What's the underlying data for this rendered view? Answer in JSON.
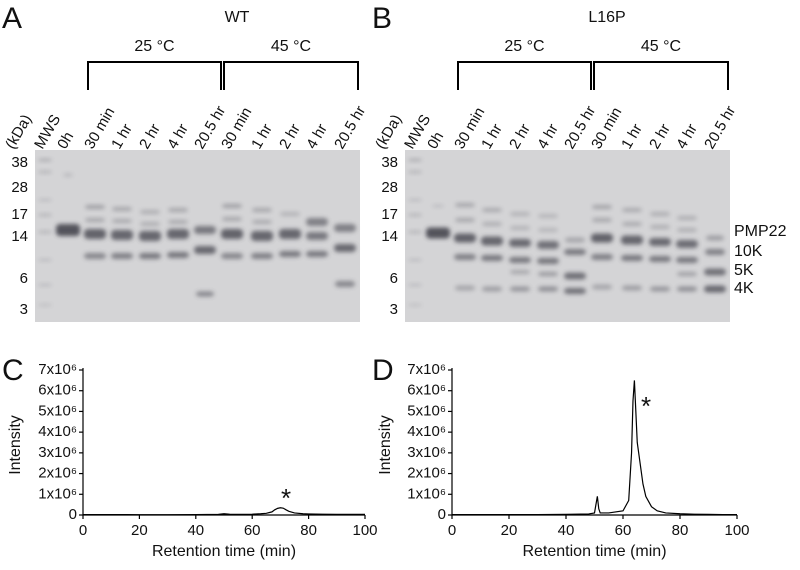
{
  "panels": [
    {
      "letter": "A",
      "title": "WT",
      "groups": [
        "25 °C",
        "45 °C"
      ],
      "unit": "(kDa)",
      "lanes": [
        "MWS",
        "0h",
        "30 min",
        "1 hr",
        "2 hr",
        "4 hr",
        "20.5 hr",
        "30 min",
        "1 hr",
        "2 hr",
        "4 hr",
        "20.5 hr"
      ],
      "markers": [
        "38",
        "28",
        "17",
        "14",
        "6",
        "3"
      ]
    },
    {
      "letter": "B",
      "title": "L16P",
      "groups": [
        "25 °C",
        "45 °C"
      ],
      "unit": "(kDa)",
      "lanes": [
        "MWS",
        "0h",
        "30 min",
        "1 hr",
        "2 hr",
        "4 hr",
        "20.5 hr",
        "30 min",
        "1 hr",
        "2 hr",
        "4 hr",
        "20.5 hr"
      ],
      "markers": [
        "38",
        "28",
        "17",
        "14",
        "6",
        "3"
      ],
      "band_labels": [
        "PMP22",
        "10K",
        "5K",
        "4K"
      ]
    }
  ],
  "chart_data": [
    {
      "letter": "C",
      "type": "line",
      "xlabel": "Retention time (min)",
      "ylabel": "Intensity",
      "annotation": "*",
      "x": [
        0,
        10,
        20,
        30,
        40,
        48,
        50,
        52,
        55,
        60,
        63,
        65,
        67,
        68,
        69,
        70,
        71,
        72,
        73,
        75,
        78,
        80,
        85,
        90,
        95,
        100
      ],
      "series": [
        {
          "color": "#000000",
          "values": [
            20000,
            20000,
            15000,
            15000,
            20000,
            30000,
            60000,
            40000,
            30000,
            40000,
            60000,
            80000,
            150000,
            250000,
            320000,
            350000,
            330000,
            250000,
            180000,
            100000,
            60000,
            50000,
            40000,
            30000,
            30000,
            30000
          ]
        }
      ],
      "xlim": [
        0,
        100
      ],
      "xticks": [
        0,
        20,
        40,
        60,
        80,
        100
      ],
      "ylim": [
        0,
        7000000
      ],
      "yticks": [
        0,
        {
          "value": 1000000,
          "label": "1x10⁶"
        },
        {
          "value": 2000000,
          "label": "2x10⁶"
        },
        {
          "value": 3000000,
          "label": "3x10⁶"
        },
        {
          "value": 4000000,
          "label": "4x10⁶"
        },
        {
          "value": 5000000,
          "label": "5x10⁶"
        },
        {
          "value": 6000000,
          "label": "6x10⁶"
        },
        {
          "value": 7000000,
          "label": "7x10⁶"
        }
      ]
    },
    {
      "letter": "D",
      "type": "line",
      "xlabel": "Retention time (min)",
      "ylabel": "Intensity",
      "annotation": "*",
      "x": [
        0,
        10,
        20,
        30,
        40,
        48,
        50,
        50.5,
        51,
        51.5,
        52,
        55,
        60,
        62,
        63,
        63.5,
        64,
        64.5,
        65,
        66,
        67,
        68,
        70,
        72,
        75,
        80,
        85,
        90,
        95,
        100
      ],
      "series": [
        {
          "color": "#000000",
          "values": [
            20000,
            20000,
            20000,
            20000,
            30000,
            50000,
            100000,
            500000,
            900000,
            300000,
            100000,
            100000,
            200000,
            700000,
            3000000,
            5500000,
            6500000,
            5000000,
            3500000,
            2500000,
            1500000,
            900000,
            400000,
            200000,
            100000,
            60000,
            40000,
            30000,
            20000,
            20000
          ]
        }
      ],
      "xlim": [
        0,
        100
      ],
      "xticks": [
        0,
        20,
        40,
        60,
        80,
        100
      ],
      "ylim": [
        0,
        7000000
      ],
      "yticks": [
        0,
        {
          "value": 1000000,
          "label": "1x10⁶"
        },
        {
          "value": 2000000,
          "label": "2x10⁶"
        },
        {
          "value": 3000000,
          "label": "3x10⁶"
        },
        {
          "value": 4000000,
          "label": "4x10⁶"
        },
        {
          "value": 5000000,
          "label": "5x10⁶"
        },
        {
          "value": 6000000,
          "label": "6x10⁶"
        },
        {
          "value": 7000000,
          "label": "7x10⁶"
        }
      ]
    }
  ]
}
